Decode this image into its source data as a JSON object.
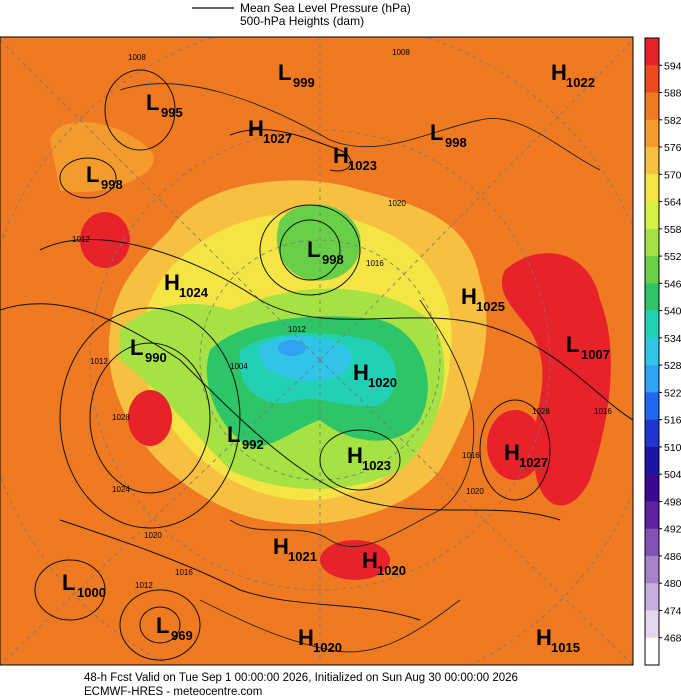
{
  "legend": {
    "line1": "Mean Sea Level Pressure (hPa)",
    "line2": "500-hPa Heights (dam)"
  },
  "colorbar": {
    "levels": [
      594,
      588,
      582,
      576,
      570,
      564,
      558,
      552,
      546,
      540,
      534,
      528,
      522,
      516,
      510,
      504,
      498,
      492,
      486,
      480,
      474,
      468
    ],
    "colors": [
      "#e8222a",
      "#ee4a22",
      "#f07a22",
      "#f59a2c",
      "#f8c040",
      "#f4e444",
      "#d6f044",
      "#a6e244",
      "#68d048",
      "#2ec468",
      "#22d0b4",
      "#30c4e6",
      "#30a2f2",
      "#2068f0",
      "#2036d2",
      "#1c14a2",
      "#3c0890",
      "#6022a2",
      "#8452b2",
      "#a882c6",
      "#c8aedc",
      "#e4d6ee",
      "#ffffff"
    ]
  },
  "centers": [
    {
      "letter": "L",
      "value": "999"
    },
    {
      "letter": "L",
      "value": "995"
    },
    {
      "letter": "H",
      "value": "1027"
    },
    {
      "letter": "H",
      "value": "1023"
    },
    {
      "letter": "L",
      "value": "998"
    },
    {
      "letter": "H",
      "value": "1022"
    },
    {
      "letter": "L",
      "value": "998"
    },
    {
      "letter": "L",
      "value": "998"
    },
    {
      "letter": "H",
      "value": "1024"
    },
    {
      "letter": "H",
      "value": "1025"
    },
    {
      "letter": "L",
      "value": "990"
    },
    {
      "letter": "L",
      "value": "1007"
    },
    {
      "letter": "H",
      "value": "1020"
    },
    {
      "letter": "L",
      "value": "992"
    },
    {
      "letter": "H",
      "value": "1023"
    },
    {
      "letter": "H",
      "value": "1027"
    },
    {
      "letter": "H",
      "value": "1021"
    },
    {
      "letter": "H",
      "value": "1020"
    },
    {
      "letter": "L",
      "value": "1000"
    },
    {
      "letter": "L",
      "value": "969"
    },
    {
      "letter": "H",
      "value": "1020"
    },
    {
      "letter": "H",
      "value": "1015"
    }
  ],
  "contour_labels": [
    "1008",
    "1008",
    "1012",
    "1012",
    "1028",
    "1024",
    "1020",
    "1016",
    "1012",
    "1016",
    "1012",
    "1016",
    "1020",
    "1028",
    "1016",
    "1004",
    "1020"
  ],
  "footer": {
    "line1": "48-h Fcst Valid on Tue Sep  1 00:00:00 2026, Initialized on Sun Aug 30 00:00:00 2026",
    "line2": "ECMWF-HRES  - meteocentre.com"
  }
}
